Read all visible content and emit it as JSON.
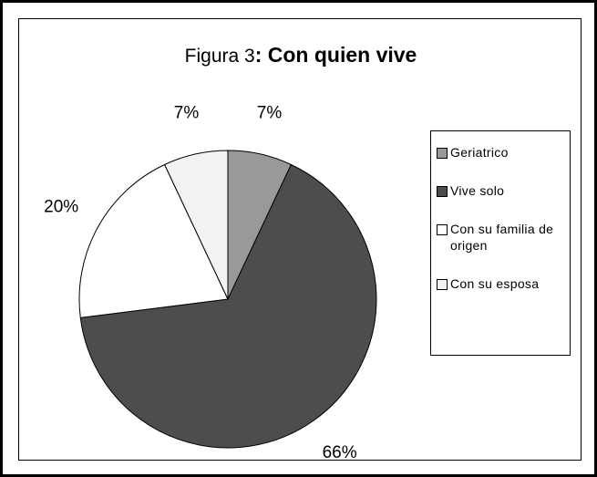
{
  "chart_data": {
    "type": "pie",
    "title": "Figura 3: Con quien vive",
    "categories": [
      "Geriatrico",
      "Vive solo",
      "Con su familia de origen",
      "Con su esposa"
    ],
    "values": [
      7,
      66,
      20,
      7
    ],
    "value_labels": [
      "7%",
      "66%",
      "20%",
      "7%"
    ],
    "colors": [
      "#999999",
      "#4d4d4d",
      "#ffffff",
      "#f2f2f2"
    ],
    "legend": "right"
  }
}
